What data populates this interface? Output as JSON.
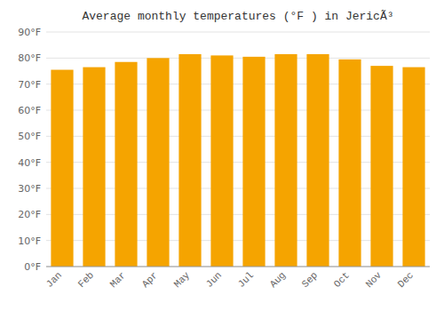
{
  "chart_data": {
    "type": "bar",
    "title": "Average monthly temperatures (°F ) in JericÃ³",
    "categories": [
      "Jan",
      "Feb",
      "Mar",
      "Apr",
      "May",
      "Jun",
      "Jul",
      "Aug",
      "Sep",
      "Oct",
      "Nov",
      "Dec"
    ],
    "values": [
      75.5,
      76.5,
      78.5,
      80.0,
      81.5,
      81.0,
      80.5,
      81.5,
      81.5,
      79.5,
      77.0,
      76.5
    ],
    "color": "#F5A400",
    "ylim": [
      0,
      90
    ],
    "yticks": [
      {
        "value": 0,
        "label": "0°F"
      },
      {
        "value": 10,
        "label": "10°F"
      },
      {
        "value": 20,
        "label": "20°F"
      },
      {
        "value": 30,
        "label": "30°F"
      },
      {
        "value": 40,
        "label": "40°F"
      },
      {
        "value": 50,
        "label": "50°F"
      },
      {
        "value": 60,
        "label": "60°F"
      },
      {
        "value": 70,
        "label": "70°F"
      },
      {
        "value": 80,
        "label": "80°F"
      },
      {
        "value": 90,
        "label": "90°F"
      }
    ],
    "grid": true
  }
}
